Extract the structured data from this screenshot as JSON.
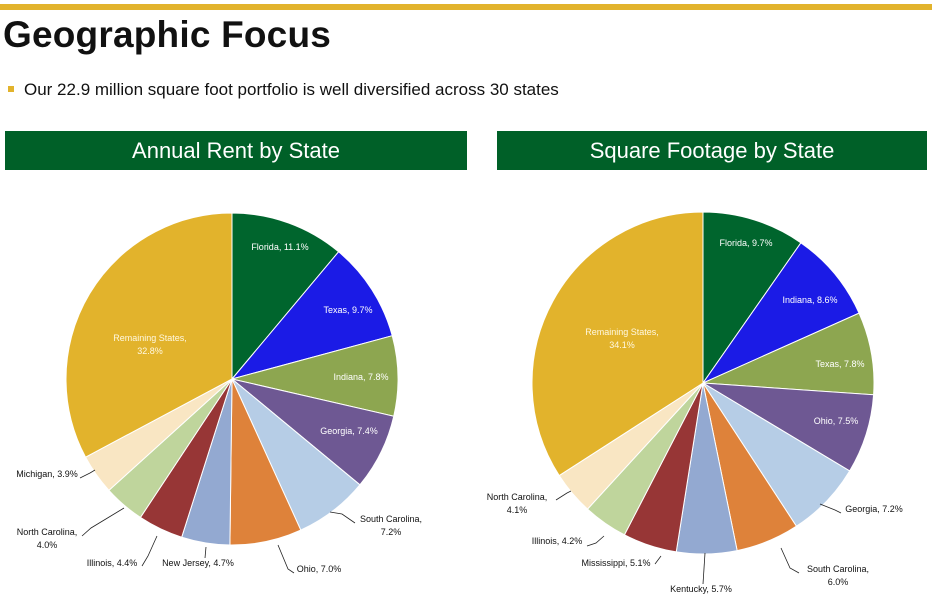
{
  "slide": {
    "title": "Geographic Focus",
    "bullet": "Our 22.9 million square foot portfolio is well diversified across 30 states"
  },
  "colors": {
    "accent_gold": "#e2b32c",
    "banner_green": "#006028"
  },
  "chart_data": [
    {
      "type": "pie",
      "title": "Annual Rent by State",
      "slices": [
        {
          "label": "Florida",
          "value": 11.1,
          "text": "Florida, 11.1%",
          "color": "#00652d"
        },
        {
          "label": "Texas",
          "value": 9.7,
          "text": "Texas, 9.7%",
          "color": "#1b1be6"
        },
        {
          "label": "Indiana",
          "value": 7.8,
          "text": "Indiana, 7.8%",
          "color": "#8da650"
        },
        {
          "label": "Georgia",
          "value": 7.4,
          "text": "Georgia, 7.4%",
          "color": "#6e5893"
        },
        {
          "label": "South Carolina",
          "value": 7.2,
          "text": "South Carolina,\n7.2%",
          "color": "#b6cde6"
        },
        {
          "label": "Ohio",
          "value": 7.0,
          "text": "Ohio, 7.0%",
          "color": "#de823a"
        },
        {
          "label": "New Jersey",
          "value": 4.7,
          "text": "New Jersey, 4.7%",
          "color": "#93a9d1"
        },
        {
          "label": "Illinois",
          "value": 4.4,
          "text": "Illinois, 4.4%",
          "color": "#973636"
        },
        {
          "label": "North Carolina",
          "value": 4.0,
          "text": "North Carolina,\n4.0%",
          "color": "#bfd59c"
        },
        {
          "label": "Michigan",
          "value": 3.9,
          "text": "Michigan, 3.9%",
          "color": "#f9e6c3"
        },
        {
          "label": "Remaining States",
          "value": 32.8,
          "text": "Remaining States,\n32.8%",
          "color": "#e2b32c"
        }
      ]
    },
    {
      "type": "pie",
      "title": "Square Footage by State",
      "slices": [
        {
          "label": "Florida",
          "value": 9.7,
          "text": "Florida, 9.7%",
          "color": "#00652d"
        },
        {
          "label": "Indiana",
          "value": 8.6,
          "text": "Indiana, 8.6%",
          "color": "#1b1be6"
        },
        {
          "label": "Texas",
          "value": 7.8,
          "text": "Texas, 7.8%",
          "color": "#8da650"
        },
        {
          "label": "Ohio",
          "value": 7.5,
          "text": "Ohio, 7.5%",
          "color": "#6e5893"
        },
        {
          "label": "Georgia",
          "value": 7.2,
          "text": "Georgia, 7.2%",
          "color": "#b6cde6"
        },
        {
          "label": "South Carolina",
          "value": 6.0,
          "text": "South Carolina,\n6.0%",
          "color": "#de823a"
        },
        {
          "label": "Kentucky",
          "value": 5.7,
          "text": "Kentucky, 5.7%",
          "color": "#93a9d1"
        },
        {
          "label": "Mississippi",
          "value": 5.1,
          "text": "Mississippi, 5.1%",
          "color": "#973636"
        },
        {
          "label": "Illinois",
          "value": 4.2,
          "text": "Illinois, 4.2%",
          "color": "#bfd59c"
        },
        {
          "label": "North Carolina",
          "value": 4.1,
          "text": "North Carolina,\n4.1%",
          "color": "#f9e6c3"
        },
        {
          "label": "Remaining States",
          "value": 34.1,
          "text": "Remaining States,\n34.1%",
          "color": "#e2b32c"
        }
      ]
    }
  ]
}
